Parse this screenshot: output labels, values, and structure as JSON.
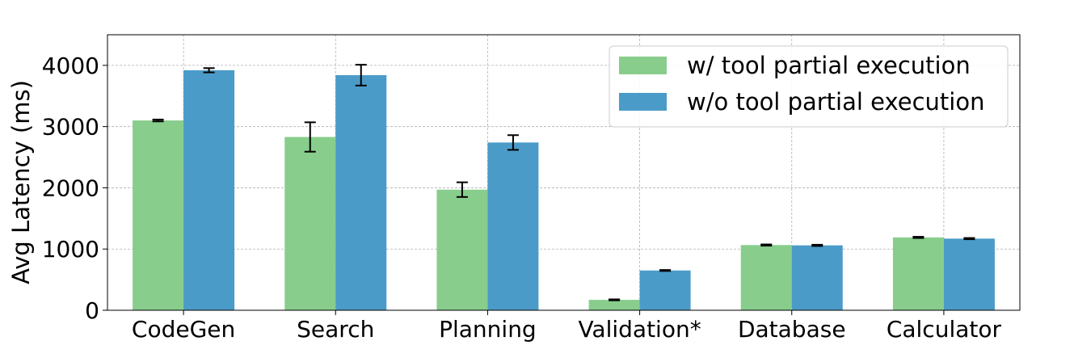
{
  "chart_data": {
    "type": "bar",
    "categories": [
      "CodeGen",
      "Search",
      "Planning",
      "Validation*",
      "Database",
      "Calculator"
    ],
    "series": [
      {
        "name": "w/ tool partial execution",
        "color": "#88cd8c",
        "values": [
          3100,
          2830,
          1970,
          170,
          1065,
          1190
        ],
        "errors": [
          15,
          240,
          120,
          8,
          10,
          10
        ]
      },
      {
        "name": "w/o tool partial execution",
        "color": "#4b9bc8",
        "values": [
          3920,
          3840,
          2740,
          650,
          1060,
          1170
        ],
        "errors": [
          35,
          170,
          120,
          8,
          10,
          10
        ]
      }
    ],
    "title": "",
    "xlabel": "",
    "ylabel": "Avg Latency (ms)",
    "ylim": [
      0,
      4500
    ],
    "yticks": [
      0,
      1000,
      2000,
      3000,
      4000
    ],
    "grid": true,
    "legend_position": "upper-right"
  }
}
